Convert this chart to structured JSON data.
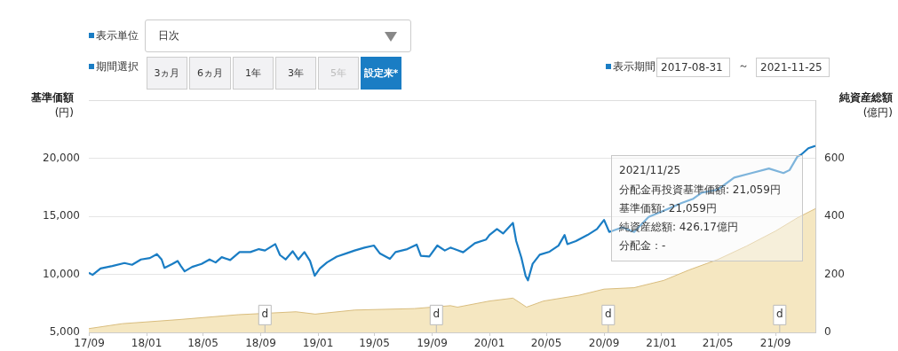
{
  "chart_data": {
    "type": "line",
    "ylabel": "基準価額\n(円)",
    "y2label": "純資産総額\n(億円)",
    "xlim": [
      "2017-08-31",
      "2021-11-25"
    ],
    "xticks": [
      {
        "value": "2017-09-01",
        "label": "17/09"
      },
      {
        "value": "2018-01-01",
        "label": "18/01"
      },
      {
        "value": "2018-05-01",
        "label": "18/05"
      },
      {
        "value": "2018-09-01",
        "label": "18/09"
      },
      {
        "value": "2019-01-01",
        "label": "19/01"
      },
      {
        "value": "2019-05-01",
        "label": "19/05"
      },
      {
        "value": "2019-09-01",
        "label": "19/09"
      },
      {
        "value": "2020-01-01",
        "label": "20/01"
      },
      {
        "value": "2020-05-01",
        "label": "20/05"
      },
      {
        "value": "2020-09-01",
        "label": "20/09"
      },
      {
        "value": "2021-01-01",
        "label": "21/01"
      },
      {
        "value": "2021-05-01",
        "label": "21/05"
      },
      {
        "value": "2021-09-01",
        "label": "21/09"
      }
    ],
    "ylim": [
      5000,
      25000
    ],
    "yticks": [
      {
        "value": 5000,
        "label": "5,000"
      },
      {
        "value": 10000,
        "label": "10,000"
      },
      {
        "value": 15000,
        "label": "15,000"
      },
      {
        "value": 20000,
        "label": "20,000"
      }
    ],
    "y2lim": [
      0,
      800
    ],
    "y2ticks": [
      0,
      200,
      400,
      600
    ],
    "grid": "y",
    "legend": false,
    "marker": "none",
    "line_style": "solid",
    "series": [
      {
        "type": "area",
        "axis": "y2",
        "color": "#f5e7c1",
        "x": [
          "2017-08-31",
          "2017-11-10",
          "2018-03-10",
          "2018-07-15",
          "2018-08-10",
          "2018-11-15",
          "2018-12-26",
          "2019-03-20",
          "2019-07-25",
          "2019-10-10",
          "2019-10-25",
          "2020-01-01",
          "2020-02-20",
          "2020-03-20",
          "2020-04-25",
          "2020-07-10",
          "2020-09-01",
          "2020-11-04",
          "2021-01-06",
          "2021-03-01",
          "2021-05-01",
          "2021-07-01",
          "2021-09-01",
          "2021-10-18",
          "2021-11-25"
        ],
        "values": [
          13,
          30,
          44,
          61,
          63,
          71,
          63,
          77,
          82,
          92,
          87,
          108,
          118,
          87,
          108,
          128,
          149,
          154,
          179,
          215,
          251,
          297,
          349,
          395,
          426.17
        ]
      },
      {
        "axis": "y",
        "color": "#1a7dc4",
        "x": [
          "2017-08-31",
          "2017-09-08",
          "2017-09-25",
          "2017-10-20",
          "2017-11-15",
          "2017-12-01",
          "2017-12-20",
          "2018-01-08",
          "2018-01-23",
          "2018-02-02",
          "2018-02-08",
          "2018-02-25",
          "2018-03-08",
          "2018-03-15",
          "2018-03-23",
          "2018-04-08",
          "2018-04-28",
          "2018-05-15",
          "2018-05-28",
          "2018-06-10",
          "2018-06-28",
          "2018-07-18",
          "2018-08-10",
          "2018-08-28",
          "2018-09-10",
          "2018-10-02",
          "2018-10-12",
          "2018-10-24",
          "2018-11-08",
          "2018-11-20",
          "2018-12-03",
          "2018-12-15",
          "2018-12-25",
          "2019-01-05",
          "2019-01-20",
          "2019-02-10",
          "2019-03-05",
          "2019-03-20",
          "2019-04-10",
          "2019-04-30",
          "2019-05-13",
          "2019-06-03",
          "2019-06-15",
          "2019-07-10",
          "2019-07-30",
          "2019-08-08",
          "2019-08-26",
          "2019-09-12",
          "2019-09-28",
          "2019-10-10",
          "2019-10-25",
          "2019-11-06",
          "2019-12-01",
          "2019-12-25",
          "2020-01-01",
          "2020-01-17",
          "2020-01-30",
          "2020-02-20",
          "2020-02-27",
          "2020-03-09",
          "2020-03-18",
          "2020-03-23",
          "2020-04-02",
          "2020-04-17",
          "2020-05-08",
          "2020-05-27",
          "2020-06-09",
          "2020-06-15",
          "2020-07-03",
          "2020-07-28",
          "2020-08-17",
          "2020-09-01",
          "2020-09-12",
          "2020-10-10",
          "2020-11-04",
          "2020-12-05",
          "2021-01-06",
          "2021-02-12",
          "2021-03-10",
          "2021-03-28",
          "2021-05-01",
          "2021-06-05",
          "2021-07-12",
          "2021-08-18",
          "2021-09-18",
          "2021-10-01",
          "2021-10-18",
          "2021-10-25",
          "2021-11-10",
          "2021-11-25"
        ],
        "values": [
          10130,
          9950,
          10510,
          10720,
          10970,
          10820,
          11280,
          11400,
          11740,
          11280,
          10560,
          10900,
          11150,
          10720,
          10260,
          10640,
          10900,
          11280,
          11020,
          11480,
          11230,
          11920,
          11920,
          12170,
          12050,
          12610,
          11660,
          11280,
          11990,
          11280,
          11920,
          11150,
          9870,
          10510,
          11020,
          11530,
          11840,
          12050,
          12300,
          12480,
          11790,
          11330,
          11920,
          12170,
          12560,
          11590,
          11530,
          12480,
          12050,
          12300,
          12080,
          11900,
          12680,
          13000,
          13390,
          13900,
          13520,
          14430,
          12860,
          11430,
          9870,
          9480,
          10910,
          11690,
          11950,
          12470,
          13390,
          12600,
          12860,
          13390,
          13900,
          14690,
          13650,
          14040,
          13650,
          14950,
          15470,
          16120,
          16510,
          17030,
          17290,
          18330,
          18720,
          19110,
          18720,
          18980,
          20160,
          20290,
          20860,
          21059
        ]
      }
    ],
    "annotations": [
      "表示単位",
      "日次",
      "期間選択",
      "3ヵ月",
      "6ヵ月",
      "1年",
      "3年",
      "5年",
      "設定来*",
      "表示期間",
      "2017-08-31",
      "～",
      "2021-11-25",
      "2021/11/25",
      "分配金再投資基準価額: 21,059円",
      "基準価額: 21,059円",
      "純資産総額: 426.17億円",
      "分配金：-",
      {
        "text": "d",
        "x": "2018-09-10",
        "y": 6500
      },
      {
        "text": "d",
        "x": "2019-09-10",
        "y": 6500
      },
      {
        "text": "d",
        "x": "2020-09-10",
        "y": 6500
      },
      {
        "text": "d",
        "x": "2021-09-10",
        "y": 6500
      }
    ]
  }
}
